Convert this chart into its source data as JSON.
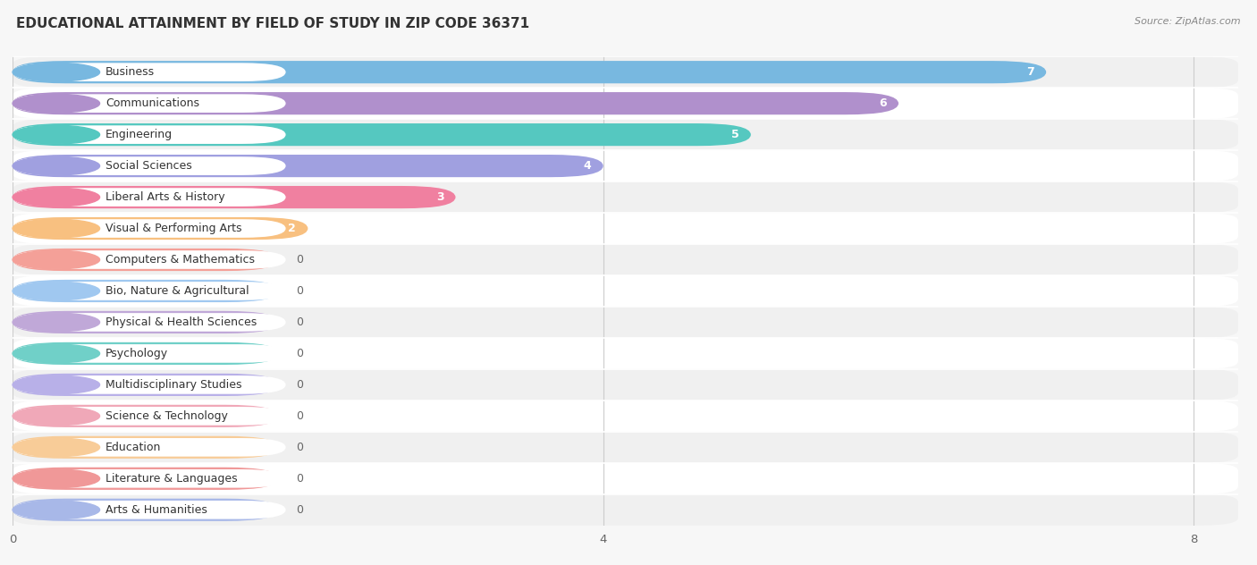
{
  "title": "EDUCATIONAL ATTAINMENT BY FIELD OF STUDY IN ZIP CODE 36371",
  "source": "Source: ZipAtlas.com",
  "categories": [
    "Business",
    "Communications",
    "Engineering",
    "Social Sciences",
    "Liberal Arts & History",
    "Visual & Performing Arts",
    "Computers & Mathematics",
    "Bio, Nature & Agricultural",
    "Physical & Health Sciences",
    "Psychology",
    "Multidisciplinary Studies",
    "Science & Technology",
    "Education",
    "Literature & Languages",
    "Arts & Humanities"
  ],
  "values": [
    7,
    6,
    5,
    4,
    3,
    2,
    0,
    0,
    0,
    0,
    0,
    0,
    0,
    0,
    0
  ],
  "bar_colors": [
    "#78b8e0",
    "#b090cc",
    "#55c8c0",
    "#a0a0e0",
    "#f080a0",
    "#f8c080",
    "#f4a098",
    "#a0c8f0",
    "#c0a8d8",
    "#70d0c8",
    "#b8b0e8",
    "#f0a8b8",
    "#f8cc98",
    "#f09898",
    "#a8b8e8"
  ],
  "zero_bar_width": 1.8,
  "xlim": [
    0,
    8.3
  ],
  "xticks": [
    0,
    4,
    8
  ],
  "bg_color": "#f7f7f7",
  "row_bg_light": "#f0f0f0",
  "row_bg_white": "#ffffff",
  "sep_color": "#e0e0e0",
  "title_fontsize": 11,
  "label_fontsize": 9,
  "value_fontsize": 9,
  "source_fontsize": 8
}
